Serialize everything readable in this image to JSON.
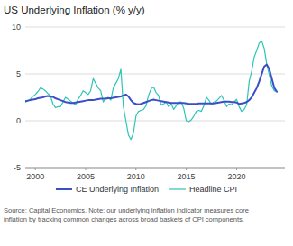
{
  "chart_data": {
    "type": "line",
    "title": "US Underlying Inflation (% y/y)",
    "annotations": [
      "Source: Capital Economics. Note: our underlying inflation indicator measures core\ninflation by tracking common changes across broad baskets of CPI components."
    ],
    "x": [
      1999,
      1999.25,
      1999.5,
      1999.75,
      2000,
      2000.25,
      2000.5,
      2000.75,
      2001,
      2001.25,
      2001.5,
      2001.75,
      2002,
      2002.25,
      2002.5,
      2002.75,
      2003,
      2003.25,
      2003.5,
      2003.75,
      2004,
      2004.25,
      2004.5,
      2004.75,
      2005,
      2005.25,
      2005.5,
      2005.75,
      2006,
      2006.25,
      2006.5,
      2006.75,
      2007,
      2007.25,
      2007.5,
      2007.75,
      2008,
      2008.25,
      2008.5,
      2008.75,
      2009,
      2009.25,
      2009.5,
      2009.75,
      2010,
      2010.25,
      2010.5,
      2010.75,
      2011,
      2011.25,
      2011.5,
      2011.75,
      2012,
      2012.25,
      2012.5,
      2012.75,
      2013,
      2013.25,
      2013.5,
      2013.75,
      2014,
      2014.25,
      2014.5,
      2014.75,
      2015,
      2015.25,
      2015.5,
      2015.75,
      2016,
      2016.25,
      2016.5,
      2016.75,
      2017,
      2017.25,
      2017.5,
      2017.75,
      2018,
      2018.25,
      2018.5,
      2018.75,
      2019,
      2019.25,
      2019.5,
      2019.75,
      2020,
      2020.25,
      2020.5,
      2020.75,
      2021,
      2021.25,
      2021.5,
      2021.75,
      2022,
      2022.25,
      2022.5,
      2022.75,
      2023,
      2023.25,
      2023.5,
      2023.75,
      2024
    ],
    "series": [
      {
        "name": "CE Underlying Inflation",
        "color": "#3a4fc7",
        "values": [
          2.1,
          2.15,
          2.2,
          2.25,
          2.3,
          2.4,
          2.45,
          2.5,
          2.6,
          2.65,
          2.6,
          2.55,
          2.4,
          2.3,
          2.2,
          2.1,
          2.0,
          1.95,
          1.9,
          1.9,
          1.95,
          2.0,
          2.05,
          2.1,
          2.15,
          2.2,
          2.2,
          2.2,
          2.25,
          2.3,
          2.35,
          2.35,
          2.35,
          2.4,
          2.4,
          2.45,
          2.5,
          2.55,
          2.6,
          2.7,
          2.8,
          2.6,
          2.2,
          1.9,
          1.8,
          1.75,
          1.8,
          1.9,
          2.0,
          2.1,
          2.2,
          2.25,
          2.2,
          2.15,
          2.1,
          2.05,
          2.0,
          1.95,
          1.9,
          1.9,
          1.9,
          1.9,
          1.9,
          1.9,
          1.85,
          1.8,
          1.8,
          1.8,
          1.8,
          1.85,
          1.85,
          1.85,
          1.85,
          1.85,
          1.85,
          1.85,
          1.9,
          1.95,
          2.0,
          2.05,
          2.05,
          2.05,
          2.0,
          2.0,
          1.95,
          1.8,
          1.85,
          1.9,
          2.0,
          2.2,
          2.5,
          3.0,
          3.5,
          4.2,
          5.0,
          5.8,
          6.0,
          5.5,
          4.5,
          3.5,
          3.1
        ]
      },
      {
        "name": "Headline CPI",
        "color": "#2ec4b6",
        "values": [
          2.0,
          2.1,
          2.3,
          2.6,
          2.8,
          3.1,
          3.5,
          3.4,
          3.2,
          2.9,
          2.7,
          1.8,
          1.4,
          1.5,
          1.5,
          2.0,
          2.5,
          2.3,
          2.1,
          1.9,
          1.7,
          2.3,
          2.7,
          3.2,
          3.0,
          2.8,
          3.2,
          4.5,
          4.0,
          3.5,
          3.2,
          2.0,
          2.4,
          2.5,
          2.2,
          3.5,
          4.0,
          4.5,
          5.5,
          1.5,
          0.0,
          -1.5,
          -2.0,
          -1.3,
          0.5,
          1.0,
          1.1,
          1.2,
          1.6,
          2.7,
          3.4,
          3.6,
          3.0,
          2.7,
          1.7,
          1.8,
          2.0,
          1.5,
          1.8,
          1.2,
          1.6,
          2.0,
          2.0,
          1.3,
          0.0,
          -0.1,
          0.1,
          0.5,
          1.0,
          1.1,
          1.0,
          1.6,
          2.5,
          2.2,
          1.7,
          2.0,
          2.1,
          2.4,
          2.7,
          2.2,
          1.5,
          1.8,
          1.7,
          2.0,
          2.3,
          1.5,
          1.0,
          1.2,
          1.7,
          4.2,
          5.3,
          6.8,
          7.5,
          8.3,
          8.5,
          7.7,
          6.0,
          4.9,
          3.7,
          3.2,
          3.1
        ]
      }
    ],
    "xlim": [
      1999.0,
      2024.8
    ],
    "xticks": [
      2000,
      2005,
      2010,
      2015,
      2020
    ],
    "ylim": [
      -5,
      10
    ],
    "yticks": [
      -5,
      0,
      5,
      10
    ],
    "grid": true,
    "legend": "bottom"
  }
}
